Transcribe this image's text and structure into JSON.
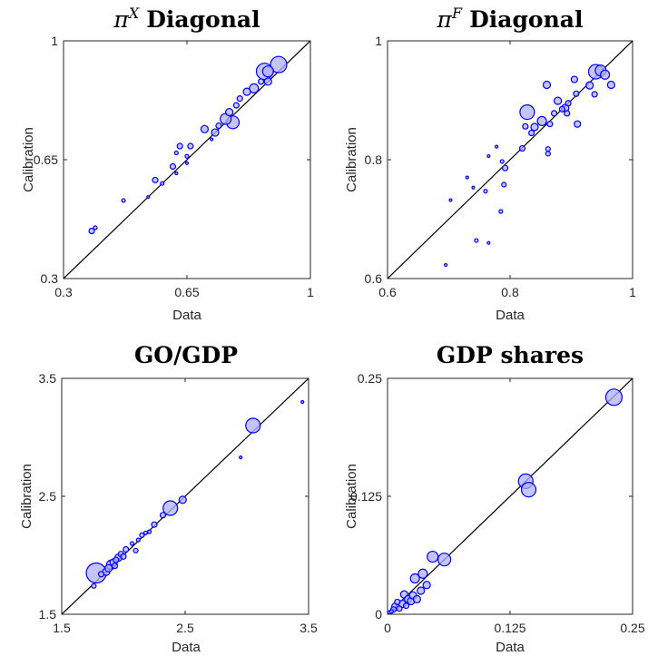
{
  "chart_data": [
    {
      "type": "scatter",
      "title_symbol": "π",
      "title_sup": "X",
      "title_text": "Diagonal",
      "xlabel": "Data",
      "ylabel": "Calibration",
      "xlim": [
        0.3,
        1
      ],
      "ylim": [
        0.3,
        1
      ],
      "xticks": [
        "0.3",
        "0.65",
        "1"
      ],
      "yticks": [
        "0.3",
        "0.65",
        "1"
      ],
      "xtick_values": [
        0.3,
        0.65,
        1
      ],
      "ytick_values": [
        0.3,
        0.65,
        1
      ],
      "diagonal": true,
      "marker_color": "#0000ff",
      "marker_fill": "#b0b0ff",
      "points": [
        {
          "x": 0.38,
          "y": 0.44,
          "s": 3
        },
        {
          "x": 0.39,
          "y": 0.45,
          "s": 2
        },
        {
          "x": 0.47,
          "y": 0.53,
          "s": 2
        },
        {
          "x": 0.54,
          "y": 0.54,
          "s": 1.5
        },
        {
          "x": 0.56,
          "y": 0.59,
          "s": 3
        },
        {
          "x": 0.58,
          "y": 0.58,
          "s": 2
        },
        {
          "x": 0.61,
          "y": 0.63,
          "s": 3
        },
        {
          "x": 0.62,
          "y": 0.61,
          "s": 1.5
        },
        {
          "x": 0.62,
          "y": 0.67,
          "s": 2
        },
        {
          "x": 0.63,
          "y": 0.69,
          "s": 3
        },
        {
          "x": 0.65,
          "y": 0.64,
          "s": 1.5
        },
        {
          "x": 0.65,
          "y": 0.66,
          "s": 2
        },
        {
          "x": 0.66,
          "y": 0.69,
          "s": 3
        },
        {
          "x": 0.7,
          "y": 0.74,
          "s": 4
        },
        {
          "x": 0.72,
          "y": 0.71,
          "s": 1.5
        },
        {
          "x": 0.73,
          "y": 0.73,
          "s": 4
        },
        {
          "x": 0.74,
          "y": 0.75,
          "s": 3
        },
        {
          "x": 0.76,
          "y": 0.77,
          "s": 6
        },
        {
          "x": 0.77,
          "y": 0.79,
          "s": 4
        },
        {
          "x": 0.78,
          "y": 0.76,
          "s": 7
        },
        {
          "x": 0.79,
          "y": 0.81,
          "s": 3
        },
        {
          "x": 0.8,
          "y": 0.83,
          "s": 3
        },
        {
          "x": 0.82,
          "y": 0.85,
          "s": 4
        },
        {
          "x": 0.84,
          "y": 0.86,
          "s": 5
        },
        {
          "x": 0.86,
          "y": 0.88,
          "s": 3
        },
        {
          "x": 0.87,
          "y": 0.91,
          "s": 9
        },
        {
          "x": 0.88,
          "y": 0.88,
          "s": 4
        },
        {
          "x": 0.88,
          "y": 0.91,
          "s": 6
        },
        {
          "x": 0.91,
          "y": 0.93,
          "s": 9
        }
      ]
    },
    {
      "type": "scatter",
      "title_symbol": "π",
      "title_sup": "F",
      "title_text": "Diagonal",
      "xlabel": "Data",
      "ylabel": "Calibration",
      "xlim": [
        0.6,
        1
      ],
      "ylim": [
        0.6,
        1
      ],
      "xticks": [
        "0.6",
        "0.8",
        "1"
      ],
      "yticks": [
        "0.6",
        "0.8",
        "1"
      ],
      "xtick_values": [
        0.6,
        0.8,
        1
      ],
      "ytick_values": [
        0.6,
        0.8,
        1
      ],
      "diagonal": true,
      "marker_color": "#0000ff",
      "marker_fill": "#b0b0ff",
      "points": [
        {
          "x": 0.695,
          "y": 0.623,
          "s": 1.5
        },
        {
          "x": 0.703,
          "y": 0.732,
          "s": 1.5
        },
        {
          "x": 0.73,
          "y": 0.77,
          "s": 1.5
        },
        {
          "x": 0.74,
          "y": 0.753,
          "s": 1.5
        },
        {
          "x": 0.745,
          "y": 0.664,
          "s": 2
        },
        {
          "x": 0.76,
          "y": 0.747,
          "s": 2
        },
        {
          "x": 0.765,
          "y": 0.66,
          "s": 1.5
        },
        {
          "x": 0.765,
          "y": 0.806,
          "s": 1.5
        },
        {
          "x": 0.778,
          "y": 0.822,
          "s": 1.5
        },
        {
          "x": 0.785,
          "y": 0.713,
          "s": 2
        },
        {
          "x": 0.787,
          "y": 0.797,
          "s": 2
        },
        {
          "x": 0.79,
          "y": 0.758,
          "s": 2.5
        },
        {
          "x": 0.792,
          "y": 0.786,
          "s": 3
        },
        {
          "x": 0.82,
          "y": 0.819,
          "s": 3
        },
        {
          "x": 0.825,
          "y": 0.856,
          "s": 3
        },
        {
          "x": 0.828,
          "y": 0.88,
          "s": 8
        },
        {
          "x": 0.835,
          "y": 0.845,
          "s": 3
        },
        {
          "x": 0.84,
          "y": 0.855,
          "s": 4
        },
        {
          "x": 0.852,
          "y": 0.865,
          "s": 5
        },
        {
          "x": 0.86,
          "y": 0.926,
          "s": 4
        },
        {
          "x": 0.862,
          "y": 0.81,
          "s": 2.5
        },
        {
          "x": 0.862,
          "y": 0.818,
          "s": 2.5
        },
        {
          "x": 0.865,
          "y": 0.86,
          "s": 3
        },
        {
          "x": 0.872,
          "y": 0.878,
          "s": 3
        },
        {
          "x": 0.878,
          "y": 0.899,
          "s": 4
        },
        {
          "x": 0.885,
          "y": 0.885,
          "s": 3
        },
        {
          "x": 0.89,
          "y": 0.887,
          "s": 4
        },
        {
          "x": 0.893,
          "y": 0.878,
          "s": 3
        },
        {
          "x": 0.895,
          "y": 0.895,
          "s": 3
        },
        {
          "x": 0.905,
          "y": 0.935,
          "s": 3.5
        },
        {
          "x": 0.908,
          "y": 0.911,
          "s": 3
        },
        {
          "x": 0.91,
          "y": 0.86,
          "s": 3.5
        },
        {
          "x": 0.93,
          "y": 0.925,
          "s": 4
        },
        {
          "x": 0.938,
          "y": 0.91,
          "s": 3
        },
        {
          "x": 0.94,
          "y": 0.948,
          "s": 8
        },
        {
          "x": 0.948,
          "y": 0.95,
          "s": 6
        },
        {
          "x": 0.955,
          "y": 0.943,
          "s": 5
        },
        {
          "x": 0.965,
          "y": 0.926,
          "s": 4
        }
      ]
    },
    {
      "type": "scatter",
      "title": "GO/GDP",
      "xlabel": "Data",
      "ylabel": "Calibration",
      "xlim": [
        1.5,
        3.5
      ],
      "ylim": [
        1.5,
        3.5
      ],
      "xticks": [
        "1.5",
        "2.5",
        "3.5"
      ],
      "yticks": [
        "1.5",
        "2.5",
        "3.5"
      ],
      "xtick_values": [
        1.5,
        2.5,
        3.5
      ],
      "ytick_values": [
        1.5,
        2.5,
        3.5
      ],
      "diagonal": true,
      "marker_color": "#0000ff",
      "marker_fill": "#b0b0ff",
      "points": [
        {
          "x": 1.76,
          "y": 1.74,
          "s": 2.5
        },
        {
          "x": 1.78,
          "y": 1.85,
          "s": 11
        },
        {
          "x": 1.82,
          "y": 1.84,
          "s": 3
        },
        {
          "x": 1.86,
          "y": 1.86,
          "s": 4
        },
        {
          "x": 1.88,
          "y": 1.89,
          "s": 4
        },
        {
          "x": 1.9,
          "y": 1.92,
          "s": 5
        },
        {
          "x": 1.92,
          "y": 1.94,
          "s": 4
        },
        {
          "x": 1.93,
          "y": 1.91,
          "s": 3
        },
        {
          "x": 1.94,
          "y": 1.96,
          "s": 3
        },
        {
          "x": 1.96,
          "y": 1.98,
          "s": 4
        },
        {
          "x": 1.98,
          "y": 2.01,
          "s": 3
        },
        {
          "x": 2.0,
          "y": 1.99,
          "s": 3
        },
        {
          "x": 2.02,
          "y": 2.05,
          "s": 3
        },
        {
          "x": 2.07,
          "y": 2.1,
          "s": 2
        },
        {
          "x": 2.1,
          "y": 2.04,
          "s": 2.5
        },
        {
          "x": 2.12,
          "y": 2.13,
          "s": 2
        },
        {
          "x": 2.15,
          "y": 2.17,
          "s": 2.5
        },
        {
          "x": 2.18,
          "y": 2.19,
          "s": 2
        },
        {
          "x": 2.21,
          "y": 2.2,
          "s": 2
        },
        {
          "x": 2.25,
          "y": 2.26,
          "s": 3
        },
        {
          "x": 2.32,
          "y": 2.34,
          "s": 3
        },
        {
          "x": 2.38,
          "y": 2.4,
          "s": 8
        },
        {
          "x": 2.48,
          "y": 2.47,
          "s": 4
        },
        {
          "x": 2.95,
          "y": 2.83,
          "s": 1.5
        },
        {
          "x": 3.05,
          "y": 3.1,
          "s": 8
        },
        {
          "x": 3.45,
          "y": 3.3,
          "s": 1.5
        }
      ]
    },
    {
      "type": "scatter",
      "title": "GDP shares",
      "xlabel": "Data",
      "ylabel": "Calibration",
      "xlim": [
        0,
        0.25
      ],
      "ylim": [
        0,
        0.25
      ],
      "xticks": [
        "0",
        "0.125",
        "0.25"
      ],
      "yticks": [
        "0",
        "0.125",
        "0.25"
      ],
      "xtick_values": [
        0,
        0.125,
        0.25
      ],
      "ytick_values": [
        0,
        0.125,
        0.25
      ],
      "diagonal": true,
      "marker_color": "#0000ff",
      "marker_fill": "#b0b0ff",
      "points": [
        {
          "x": 0.002,
          "y": 0.002,
          "s": 2
        },
        {
          "x": 0.004,
          "y": 0.003,
          "s": 2
        },
        {
          "x": 0.006,
          "y": 0.005,
          "s": 3
        },
        {
          "x": 0.008,
          "y": 0.008,
          "s": 4
        },
        {
          "x": 0.01,
          "y": 0.013,
          "s": 3
        },
        {
          "x": 0.012,
          "y": 0.006,
          "s": 3
        },
        {
          "x": 0.015,
          "y": 0.011,
          "s": 4
        },
        {
          "x": 0.017,
          "y": 0.021,
          "s": 4
        },
        {
          "x": 0.019,
          "y": 0.009,
          "s": 3
        },
        {
          "x": 0.021,
          "y": 0.016,
          "s": 4
        },
        {
          "x": 0.024,
          "y": 0.014,
          "s": 4
        },
        {
          "x": 0.026,
          "y": 0.02,
          "s": 4
        },
        {
          "x": 0.028,
          "y": 0.038,
          "s": 5
        },
        {
          "x": 0.03,
          "y": 0.016,
          "s": 4
        },
        {
          "x": 0.034,
          "y": 0.025,
          "s": 4
        },
        {
          "x": 0.036,
          "y": 0.043,
          "s": 5
        },
        {
          "x": 0.04,
          "y": 0.031,
          "s": 4
        },
        {
          "x": 0.046,
          "y": 0.061,
          "s": 6
        },
        {
          "x": 0.058,
          "y": 0.058,
          "s": 7
        },
        {
          "x": 0.141,
          "y": 0.141,
          "s": 8
        },
        {
          "x": 0.144,
          "y": 0.132,
          "s": 8
        },
        {
          "x": 0.231,
          "y": 0.23,
          "s": 9
        }
      ]
    }
  ]
}
